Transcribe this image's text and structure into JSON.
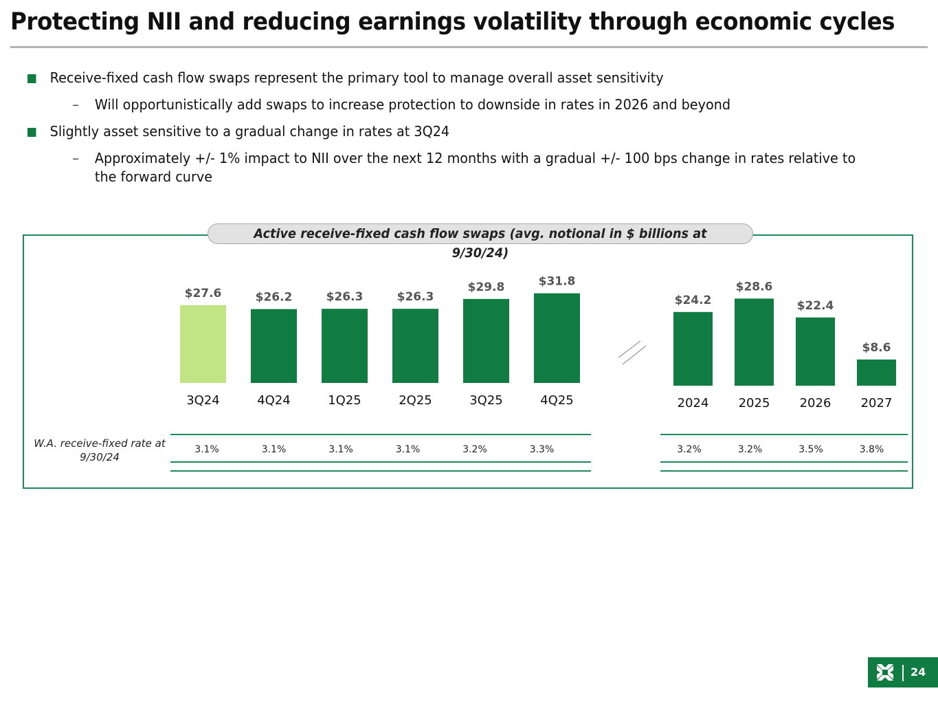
{
  "header": {
    "title": "Protecting NII and reducing earnings volatility through economic cycles"
  },
  "bullets": [
    {
      "level": 1,
      "text": "Receive-fixed cash flow swaps represent the primary tool to manage overall asset sensitivity"
    },
    {
      "level": 2,
      "text": "Will opportunistically add swaps to increase protection to downside in rates in 2026 and beyond"
    },
    {
      "level": 1,
      "text": "Slightly asset sensitive to a gradual change in rates at 3Q24"
    },
    {
      "level": 2,
      "text": "Approximately +/- 1% impact to NII over the next 12 months with a gradual +/- 100 bps change in rates relative to the forward curve"
    }
  ],
  "bullet_marker_level2": "–",
  "colors": {
    "accent": "#107c41",
    "highlight_bar": "#bfe584",
    "panel_border": "#1e8a5a",
    "label_gray": "#555555"
  },
  "chart_data": [
    {
      "type": "bar",
      "title": "Active receive-fixed cash flow swaps (avg. notional in $ billions at 9/30/24)",
      "categories": [
        "3Q24",
        "4Q24",
        "1Q25",
        "2Q25",
        "3Q25",
        "4Q25"
      ],
      "values": [
        27.6,
        26.2,
        26.3,
        26.3,
        29.8,
        31.8
      ],
      "value_labels": [
        "$27.6",
        "$26.2",
        "$26.3",
        "$26.3",
        "$29.8",
        "$31.8"
      ],
      "highlight_index": 0,
      "xlabel": "",
      "ylabel": "",
      "ylim": [
        0,
        34
      ],
      "grid": false,
      "row_label": "W.A. receive-fixed rate at 9/30/24",
      "rates": [
        "3.1%",
        "3.1%",
        "3.1%",
        "3.1%",
        "3.2%",
        "3.3%"
      ]
    },
    {
      "type": "bar",
      "title": "Active receive-fixed cash flow swaps (avg. notional in $ billions at 9/30/24)",
      "categories": [
        "2024",
        "2025",
        "2026",
        "2027"
      ],
      "values": [
        24.2,
        28.6,
        22.4,
        8.6
      ],
      "value_labels": [
        "$24.2",
        "$28.6",
        "$22.4",
        "$8.6"
      ],
      "xlabel": "",
      "ylabel": "",
      "ylim": [
        0,
        34
      ],
      "grid": false,
      "rates": [
        "3.2%",
        "3.2%",
        "3.5%",
        "3.8%"
      ]
    }
  ],
  "footer": {
    "page_number": "24",
    "logo_icon": "bank-logo-icon"
  }
}
